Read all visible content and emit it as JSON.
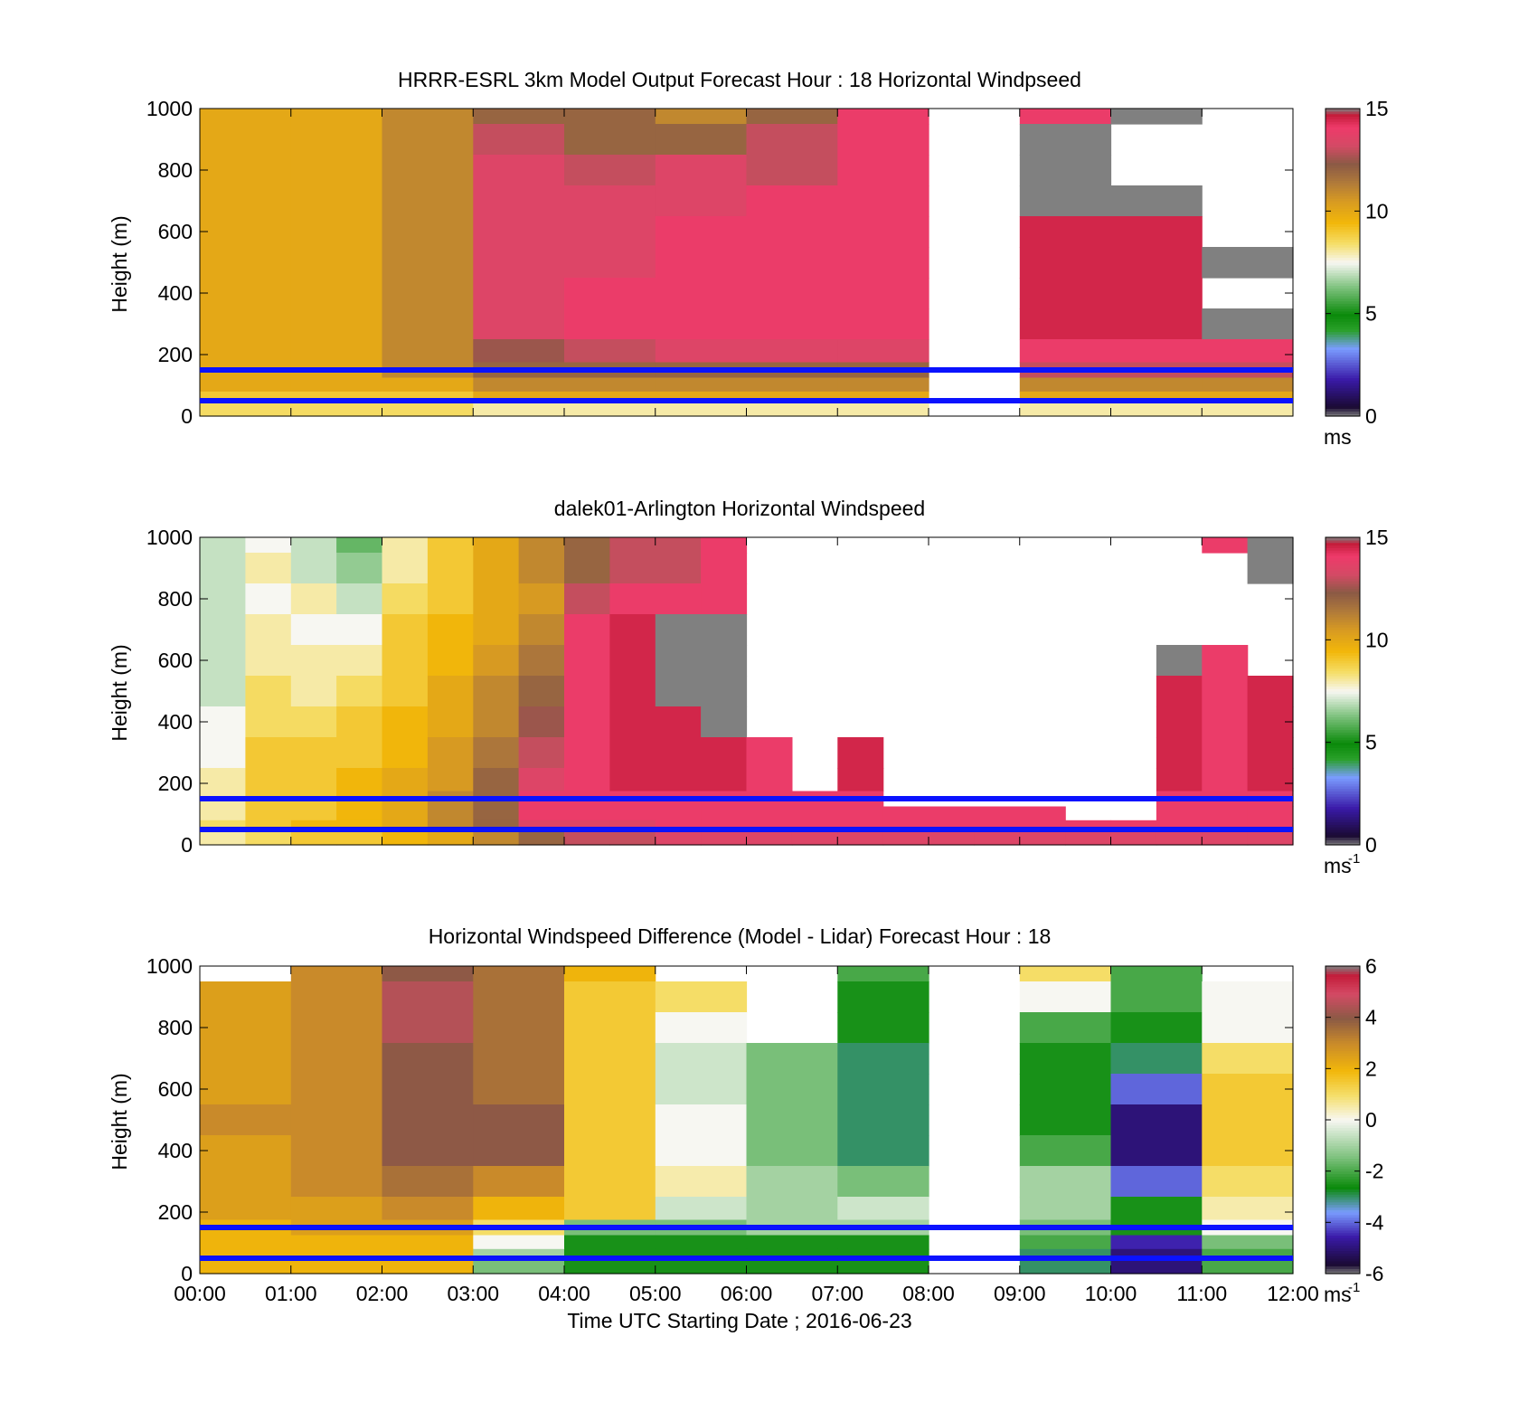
{
  "chart_data": [
    {
      "type": "heatmap",
      "title": "HRRR-ESRL 3km Model Output   Forecast Hour : 18 Horizontal Windpseed",
      "ylabel": "Height (m)",
      "xlabel": "",
      "ylim": [
        0,
        1000
      ],
      "yticks": [
        "1000",
        "800",
        "600",
        "400",
        "200",
        "0"
      ],
      "xticks": [],
      "colorbar": {
        "min": 0,
        "max": 15,
        "ticks": [
          "15",
          "10",
          "5",
          "0"
        ],
        "unit": "ms",
        "unit_sup": ""
      },
      "colormap": "windspeed",
      "x_hours": [
        0,
        1,
        2,
        3,
        4,
        5,
        6,
        7,
        8,
        9,
        10,
        11
      ],
      "y_levels": [
        1000,
        900,
        800,
        700,
        600,
        500,
        400,
        300,
        200,
        150,
        100,
        60,
        30
      ],
      "values": [
        [
          10,
          10,
          11,
          12,
          12,
          11,
          12,
          14,
          null,
          14,
          15,
          null
        ],
        [
          10,
          10,
          11,
          13,
          12,
          12,
          13,
          14,
          null,
          15,
          null,
          null
        ],
        [
          10,
          10,
          11,
          13.5,
          13,
          13.5,
          13,
          14,
          null,
          15,
          null,
          null
        ],
        [
          10,
          10,
          11,
          13.5,
          13.5,
          13.5,
          14,
          14,
          null,
          15,
          15,
          null
        ],
        [
          10,
          10,
          11,
          13.5,
          13.5,
          14,
          14,
          14,
          null,
          14.5,
          14.5,
          null
        ],
        [
          10,
          10,
          11,
          13.5,
          13.5,
          14,
          14,
          14,
          null,
          14.5,
          14.5,
          15
        ],
        [
          10,
          10,
          11,
          13.5,
          14,
          14,
          14,
          14,
          null,
          14.5,
          14.5,
          null
        ],
        [
          10,
          10,
          11,
          13.5,
          14,
          14,
          14,
          14,
          null,
          14.5,
          14.5,
          15
        ],
        [
          10,
          10,
          11,
          12.5,
          13,
          13.5,
          13.5,
          13.5,
          null,
          14,
          14,
          14
        ],
        [
          10,
          10,
          11,
          12,
          12,
          12,
          12,
          12,
          null,
          13,
          13,
          13
        ],
        [
          10,
          10,
          10,
          11,
          11,
          11,
          11,
          11,
          null,
          11,
          11,
          11
        ],
        [
          9,
          9,
          9,
          10,
          10,
          10,
          10,
          10,
          null,
          10,
          10,
          10
        ],
        [
          8.5,
          8.5,
          8.5,
          8,
          8,
          8,
          8,
          8,
          null,
          8,
          8,
          8
        ]
      ],
      "reference_lines_m": [
        150,
        50
      ]
    },
    {
      "type": "heatmap",
      "title": "dalek01-Arlington  Horizontal Windspeed",
      "ylabel": "Height (m)",
      "xlabel": "",
      "ylim": [
        0,
        1000
      ],
      "yticks": [
        "1000",
        "800",
        "600",
        "400",
        "200",
        "0"
      ],
      "xticks": [],
      "colorbar": {
        "min": 0,
        "max": 15,
        "ticks": [
          "15",
          "10",
          "5",
          "0"
        ],
        "unit": "ms",
        "unit_sup": "-1"
      },
      "colormap": "windspeed",
      "x_hours": [
        0,
        0.5,
        1,
        1.5,
        2,
        2.5,
        3,
        3.5,
        4,
        4.5,
        5,
        5.5,
        6,
        6.5,
        7,
        7.5,
        8,
        8.5,
        9,
        9.5,
        10,
        10.5,
        11,
        11.5
      ],
      "y_levels": [
        1000,
        900,
        800,
        700,
        600,
        500,
        400,
        300,
        200,
        150,
        100,
        60,
        30
      ],
      "values": [
        [
          7,
          7.5,
          7,
          6,
          8,
          9,
          10,
          11,
          12,
          13,
          13,
          14,
          null,
          null,
          null,
          null,
          null,
          null,
          null,
          null,
          null,
          null,
          14,
          15
        ],
        [
          7,
          8,
          7,
          6.5,
          8,
          9,
          10,
          11,
          12,
          13,
          13,
          14,
          null,
          null,
          null,
          null,
          null,
          null,
          null,
          null,
          null,
          null,
          null,
          15
        ],
        [
          7,
          7.5,
          8,
          7,
          8.5,
          9,
          10,
          10.5,
          13,
          14,
          14,
          14,
          null,
          null,
          null,
          null,
          null,
          null,
          null,
          null,
          null,
          null,
          null,
          null
        ],
        [
          7,
          8,
          7.5,
          7.5,
          9,
          9.5,
          10,
          11,
          14,
          14.5,
          15,
          15,
          null,
          null,
          null,
          null,
          null,
          null,
          null,
          null,
          null,
          null,
          null,
          null
        ],
        [
          7,
          8,
          8,
          8,
          9,
          9.5,
          10.5,
          11.5,
          14,
          14.5,
          15,
          15,
          null,
          null,
          null,
          null,
          null,
          null,
          null,
          null,
          null,
          15,
          14,
          null
        ],
        [
          7,
          8.5,
          8,
          8.5,
          9,
          10,
          11,
          12,
          14,
          14.5,
          15,
          15,
          null,
          null,
          null,
          null,
          null,
          null,
          null,
          null,
          null,
          14.5,
          14,
          14.5
        ],
        [
          7.5,
          8.5,
          8.5,
          9,
          9.5,
          10,
          11,
          12.5,
          14,
          14.5,
          14.5,
          15,
          null,
          null,
          null,
          null,
          null,
          null,
          null,
          null,
          null,
          14.5,
          14,
          14.5
        ],
        [
          7.5,
          9,
          9,
          9,
          9.5,
          10.5,
          11.5,
          13,
          14,
          14.5,
          14.5,
          14.5,
          14,
          null,
          14.5,
          null,
          null,
          null,
          null,
          null,
          null,
          14.5,
          14,
          14.5
        ],
        [
          8,
          9,
          9,
          9.5,
          10,
          10.5,
          12,
          13.5,
          14,
          14.5,
          14.5,
          14.5,
          14,
          null,
          14.5,
          null,
          null,
          null,
          null,
          null,
          null,
          14.5,
          14,
          14.5
        ],
        [
          8,
          9,
          9,
          9.5,
          10,
          11,
          12,
          14,
          14,
          14,
          14,
          14,
          14,
          14,
          14,
          null,
          null,
          null,
          null,
          null,
          null,
          14,
          14,
          14
        ],
        [
          8,
          9,
          9,
          9.5,
          10,
          11,
          12,
          14,
          14,
          14,
          14,
          14,
          14,
          14,
          14,
          14,
          14,
          14,
          14,
          null,
          null,
          14,
          14,
          14
        ],
        [
          8.5,
          9,
          9.5,
          9.5,
          10,
          11,
          12,
          13.5,
          13.5,
          13.5,
          14,
          14,
          14,
          14,
          14,
          14,
          14,
          14,
          14,
          14,
          14,
          14,
          14,
          14
        ],
        [
          8,
          8.5,
          9,
          9,
          9.5,
          10,
          11,
          12,
          13,
          13,
          13.5,
          13.5,
          13.5,
          13.5,
          13.5,
          13.5,
          13.5,
          13.5,
          13.5,
          13.5,
          13.5,
          13.5,
          13.5,
          13.5
        ]
      ],
      "reference_lines_m": [
        150,
        50
      ]
    },
    {
      "type": "heatmap",
      "title": "Horizontal Windspeed Difference (Model - Lidar) Forecast Hour : 18",
      "ylabel": "Height (m)",
      "xlabel": "Time UTC  Starting Date ; 2016-06-23",
      "ylim": [
        0,
        1000
      ],
      "yticks": [
        "1000",
        "800",
        "600",
        "400",
        "200",
        "0"
      ],
      "xticks": [
        "00:00",
        "01:00",
        "02:00",
        "03:00",
        "04:00",
        "05:00",
        "06:00",
        "07:00",
        "08:00",
        "09:00",
        "10:00",
        "11:00",
        "12:00"
      ],
      "colorbar": {
        "min": -6,
        "max": 6,
        "ticks": [
          "6",
          "4",
          "2",
          "0",
          "-2",
          "-4",
          "-6"
        ],
        "unit": "ms",
        "unit_sup": "-1"
      },
      "colormap": "difference",
      "x_hours": [
        0,
        1,
        2,
        3,
        4,
        5,
        6,
        7,
        8,
        9,
        10,
        11
      ],
      "y_levels": [
        1000,
        900,
        800,
        700,
        600,
        500,
        400,
        300,
        200,
        150,
        100,
        60,
        30
      ],
      "values": [
        [
          null,
          3,
          4,
          3.5,
          2,
          null,
          null,
          -2,
          null,
          1,
          -2,
          null
        ],
        [
          2.5,
          3,
          4.5,
          3.5,
          1.5,
          1,
          null,
          -2.5,
          null,
          0,
          -2,
          0
        ],
        [
          2.5,
          3,
          4.5,
          3.5,
          1.5,
          0,
          null,
          -2.5,
          null,
          -2,
          -2.5,
          0
        ],
        [
          2.5,
          3,
          4,
          3.5,
          1.5,
          -0.5,
          -1.5,
          -3,
          null,
          -2.5,
          -3,
          1
        ],
        [
          2.5,
          3,
          4,
          3.5,
          1.5,
          -0.5,
          -1.5,
          -3,
          null,
          -2.5,
          -4,
          1.5
        ],
        [
          3,
          3,
          4,
          4,
          1.5,
          0,
          -1.5,
          -3,
          null,
          -2.5,
          -5,
          1.5
        ],
        [
          2.5,
          3,
          4,
          4,
          1.5,
          0,
          -1.5,
          -3,
          null,
          -2,
          -5,
          1.5
        ],
        [
          2.5,
          3,
          3.5,
          3,
          1.5,
          0.5,
          -1,
          -1.5,
          null,
          -1,
          -4,
          1
        ],
        [
          2.5,
          2.5,
          3,
          2,
          1.5,
          -0.5,
          -1,
          -0.5,
          null,
          -1,
          -2.5,
          0.5
        ],
        [
          2,
          2.5,
          2.5,
          1,
          -1.5,
          -1.5,
          -1,
          -1,
          null,
          -1.5,
          -2.5,
          0
        ],
        [
          2,
          2,
          2,
          0,
          -2.5,
          -2.5,
          -2.5,
          -2.5,
          null,
          -2,
          -4.5,
          -1.5
        ],
        [
          2,
          2,
          2,
          -1,
          -2.5,
          -2.5,
          -2.5,
          -2.5,
          null,
          -3,
          -5,
          -2
        ],
        [
          2,
          2,
          2,
          -1.5,
          -2.5,
          -2.5,
          -2.5,
          -2.5,
          null,
          -3,
          -5,
          -2
        ]
      ],
      "reference_lines_m": [
        150,
        50
      ]
    }
  ]
}
